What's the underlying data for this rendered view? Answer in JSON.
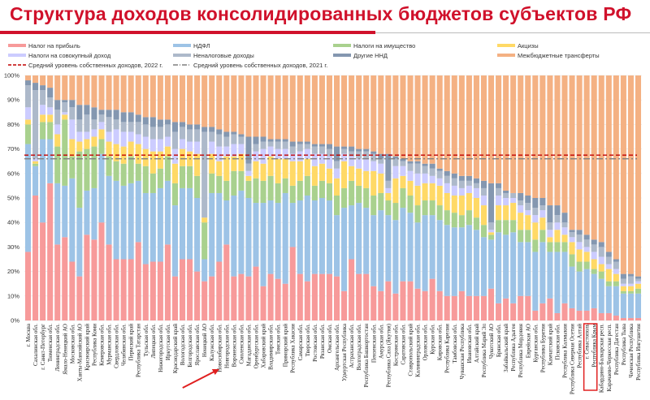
{
  "title": "Структура доходов консолидированных бюджетов субъектов РФ",
  "chart_data": {
    "type": "bar",
    "stacked": true,
    "title": "Структура доходов консолидированных бюджетов субъектов РФ",
    "ylim": [
      0,
      100
    ],
    "yticks": [
      "0%",
      "10%",
      "20%",
      "30%",
      "40%",
      "50%",
      "60%",
      "70%",
      "80%",
      "90%",
      "100%"
    ],
    "grid": true,
    "legend_position": "top",
    "series": [
      {
        "name": "Налог на прибыль",
        "color": "#f79a9a"
      },
      {
        "name": "НДФЛ",
        "color": "#9dc3e6"
      },
      {
        "name": "Налоги на имущество",
        "color": "#a9d18e"
      },
      {
        "name": "Акцизы",
        "color": "#ffd966"
      },
      {
        "name": "Налоги на совокупный доход",
        "color": "#ccccff"
      },
      {
        "name": "Неналоговые доходы",
        "color": "#adb9ca"
      },
      {
        "name": "Другие ННД",
        "color": "#8497b0"
      },
      {
        "name": "Межбюджетные трансферты",
        "color": "#f4b183"
      }
    ],
    "reference_lines": [
      {
        "name": "Средний уровень собственных доходов, 2022 г.",
        "value": 67.5,
        "color": "#c00000",
        "style": "dashed"
      },
      {
        "name": "Средний уровень собственных доходов, 2021 г.",
        "value": 66,
        "color": "#7f7f7f",
        "style": "dash-dot"
      }
    ],
    "categories": [
      "г. Москва",
      "Сахалинская обл.",
      "г. Санкт-Петербург",
      "Тюменская обл.",
      "Ленинградская обл.",
      "Ямало-Ненецкий АО",
      "Московская обл.",
      "Ханты-Мансийский АО",
      "Красноярский край",
      "Республика Коми",
      "Кемеровская обл.",
      "Мурманская обл.",
      "Свердловская обл.",
      "Челябинская обл.",
      "Пермский край",
      "Республика Татарстан",
      "Тульская обл.",
      "Липецкая обл.",
      "Нижегородская обл.",
      "Иркутская обл.",
      "Краснодарский край",
      "Вологодская обл.",
      "Белгородская обл.",
      "Ярославская обл.",
      "Ненецкий АО",
      "Калужская обл.",
      "Новосибирская обл.",
      "Новгородская обл.",
      "Воронежская обл.",
      "Смоленская обл.",
      "Магаданская обл.",
      "Оренбургская обл.",
      "Хабаровский край",
      "Владимирская обл.",
      "Томская обл.",
      "Приморский край",
      "Республика Хакасия",
      "Самарская обл.",
      "Тверская обл.",
      "Ростовская обл.",
      "Рязанская обл.",
      "Омская обл.",
      "Архангельская обл.",
      "Удмуртская Республика",
      "Астраханская обл.",
      "Волгоградская обл.",
      "Республика Башкортостан",
      "Пензенская обл.",
      "Амурская обл.",
      "Республика Саха (Якутия)",
      "Костромская обл.",
      "Саратовская обл.",
      "Ставропольский край",
      "Калининградская обл.",
      "Орловская обл.",
      "Курская обл.",
      "Кировская обл.",
      "Республика Карелия",
      "Тамбовская обл.",
      "Чувашская Республика",
      "Ивановская обл.",
      "Алтайский край",
      "Республика Марий Эл",
      "Чукотский АО",
      "Брянская обл.",
      "Забайкальский край",
      "Республика Адыгея",
      "Республика Мордовия",
      "Еврейская АО",
      "Курганская обл.",
      "Республика Бурятия",
      "Камчатский край",
      "Псковская обл.",
      "Республика Калмыкия",
      "Республика Северная Осетия",
      "Республика Алтай",
      "г. Севастополь",
      "Республика Крым",
      "Кабардино-Балкарская респ.",
      "Карачаево-Черкесская респ.",
      "Республика Дагестан",
      "Республика Тыва",
      "Чеченская Республика",
      "Республика Ингушетия"
    ],
    "values_order": [
      "Налог на прибыль",
      "НДФЛ",
      "Налоги на имущество",
      "Акцизы",
      "Налоги на совокупный доход",
      "Неналоговые доходы",
      "Другие ННД"
    ],
    "values": [
      [
        28,
        44,
        8,
        2,
        5,
        9,
        2
      ],
      [
        51,
        12,
        1,
        1,
        1,
        28,
        3
      ],
      [
        40,
        34,
        7,
        3,
        4,
        6,
        2
      ],
      [
        56,
        18,
        7,
        3,
        3,
        4,
        4
      ],
      [
        31,
        25,
        15,
        5,
        4,
        6,
        4
      ],
      [
        34,
        21,
        27,
        2,
        1,
        4,
        1
      ],
      [
        24,
        34,
        9,
        7,
        8,
        5,
        3
      ],
      [
        18,
        28,
        23,
        4,
        4,
        5,
        6
      ],
      [
        35,
        18,
        17,
        4,
        3,
        7,
        4
      ],
      [
        33,
        21,
        17,
        4,
        3,
        4,
        5
      ],
      [
        40,
        28,
        6,
        4,
        3,
        3,
        2
      ],
      [
        31,
        28,
        8,
        6,
        4,
        6,
        3
      ],
      [
        25,
        32,
        8,
        7,
        6,
        4,
        4
      ],
      [
        25,
        30,
        9,
        7,
        6,
        4,
        4
      ],
      [
        25,
        31,
        11,
        6,
        4,
        4,
        4
      ],
      [
        32,
        25,
        7,
        8,
        4,
        5,
        3
      ],
      [
        23,
        29,
        11,
        7,
        5,
        5,
        3
      ],
      [
        24,
        28,
        8,
        9,
        5,
        5,
        4
      ],
      [
        24,
        30,
        8,
        7,
        5,
        5,
        3
      ],
      [
        31,
        26,
        10,
        4,
        4,
        5,
        2
      ],
      [
        18,
        29,
        9,
        8,
        6,
        7,
        4
      ],
      [
        25,
        29,
        9,
        7,
        4,
        5,
        2
      ],
      [
        25,
        29,
        9,
        6,
        4,
        5,
        2
      ],
      [
        20,
        30,
        9,
        9,
        5,
        5,
        2
      ],
      [
        16,
        9,
        15,
        2,
        0,
        35,
        2
      ],
      [
        18,
        34,
        8,
        8,
        5,
        4,
        2
      ],
      [
        24,
        28,
        7,
        6,
        6,
        5,
        2
      ],
      [
        31,
        18,
        8,
        10,
        4,
        4,
        2
      ],
      [
        18,
        33,
        10,
        6,
        5,
        4,
        1
      ],
      [
        19,
        34,
        8,
        7,
        4,
        3,
        1
      ],
      [
        18,
        32,
        7,
        2,
        2,
        3,
        11
      ],
      [
        22,
        26,
        10,
        7,
        4,
        3,
        3
      ],
      [
        14,
        34,
        9,
        7,
        6,
        3,
        2
      ],
      [
        19,
        30,
        10,
        8,
        4,
        2,
        1
      ],
      [
        17,
        31,
        8,
        10,
        4,
        3,
        1
      ],
      [
        15,
        37,
        6,
        8,
        4,
        3,
        1
      ],
      [
        30,
        18,
        7,
        10,
        3,
        3,
        2
      ],
      [
        19,
        30,
        8,
        8,
        4,
        3,
        1
      ],
      [
        16,
        35,
        8,
        7,
        4,
        2,
        1
      ],
      [
        19,
        30,
        6,
        8,
        5,
        3,
        1
      ],
      [
        19,
        31,
        7,
        7,
        4,
        3,
        1
      ],
      [
        19,
        30,
        7,
        6,
        5,
        3,
        2
      ],
      [
        18,
        25,
        8,
        7,
        4,
        3,
        6
      ],
      [
        12,
        34,
        8,
        11,
        3,
        2,
        1
      ],
      [
        25,
        22,
        10,
        6,
        4,
        2,
        2
      ],
      [
        19,
        29,
        7,
        7,
        4,
        3,
        1
      ],
      [
        19,
        27,
        8,
        7,
        5,
        3,
        1
      ],
      [
        14,
        29,
        8,
        10,
        4,
        3,
        1
      ],
      [
        12,
        33,
        7,
        8,
        4,
        2,
        2
      ],
      [
        16,
        27,
        6,
        3,
        2,
        3,
        11
      ],
      [
        11,
        30,
        7,
        10,
        5,
        3,
        1
      ],
      [
        16,
        30,
        8,
        5,
        4,
        2,
        1
      ],
      [
        16,
        28,
        7,
        6,
        4,
        3,
        1
      ],
      [
        13,
        27,
        7,
        8,
        5,
        4,
        1
      ],
      [
        12,
        31,
        6,
        7,
        4,
        3,
        1
      ],
      [
        17,
        26,
        6,
        7,
        3,
        3,
        2
      ],
      [
        12,
        29,
        6,
        8,
        3,
        3,
        1
      ],
      [
        10,
        29,
        6,
        7,
        4,
        3,
        2
      ],
      [
        10,
        28,
        6,
        7,
        4,
        3,
        2
      ],
      [
        12,
        26,
        5,
        8,
        3,
        3,
        2
      ],
      [
        10,
        29,
        6,
        7,
        3,
        2,
        2
      ],
      [
        10,
        27,
        5,
        8,
        4,
        2,
        2
      ],
      [
        10,
        24,
        5,
        8,
        4,
        3,
        3
      ],
      [
        13,
        20,
        2,
        1,
        1,
        3,
        16
      ],
      [
        7,
        29,
        5,
        6,
        4,
        3,
        2
      ],
      [
        9,
        26,
        6,
        6,
        3,
        2,
        1
      ],
      [
        7,
        29,
        5,
        7,
        2,
        2,
        0
      ],
      [
        10,
        22,
        5,
        7,
        3,
        2,
        3
      ],
      [
        10,
        22,
        5,
        6,
        2,
        3,
        3
      ],
      [
        4,
        24,
        5,
        7,
        3,
        3,
        4
      ],
      [
        7,
        25,
        5,
        5,
        3,
        2,
        3
      ],
      [
        9,
        19,
        4,
        2,
        3,
        3,
        7
      ],
      [
        3,
        25,
        4,
        5,
        3,
        3,
        4
      ],
      [
        7,
        21,
        4,
        3,
        3,
        2,
        4
      ],
      [
        5,
        17,
        5,
        5,
        2,
        2,
        1
      ],
      [
        4,
        16,
        4,
        5,
        3,
        3,
        2
      ],
      [
        4,
        17,
        3,
        4,
        2,
        3,
        2
      ],
      [
        5,
        14,
        2,
        4,
        3,
        3,
        2
      ],
      [
        3,
        14,
        3,
        3,
        3,
        4,
        2
      ],
      [
        3,
        11,
        2,
        5,
        2,
        3,
        2
      ],
      [
        2,
        12,
        2,
        3,
        2,
        3,
        1
      ],
      [
        1,
        10,
        1,
        2,
        1,
        2,
        2
      ],
      [
        1,
        10,
        1,
        2,
        1,
        3,
        1
      ],
      [
        1,
        10,
        2,
        2,
        1,
        1,
        1
      ]
    ],
    "highlighted_categories": [
      "Новосибирская обл.",
      "г. Севастополь",
      "Республика Крым"
    ]
  }
}
